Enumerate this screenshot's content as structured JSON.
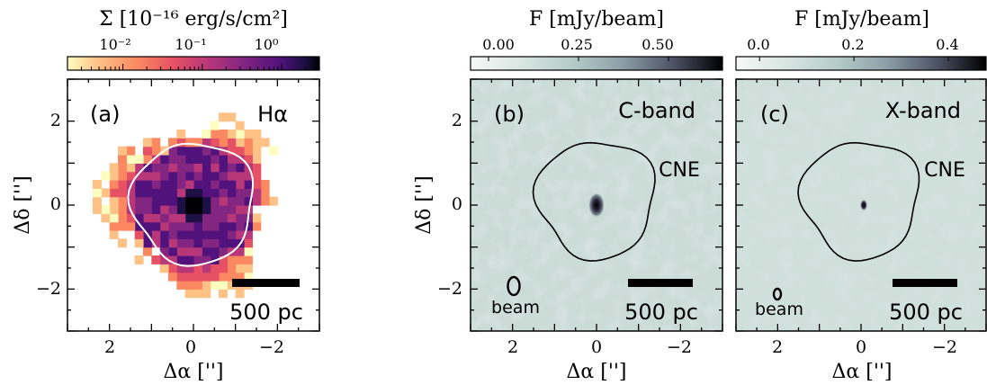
{
  "colors": {
    "halpha_cmap": [
      "#fcfdbf",
      "#fec287",
      "#fb8861",
      "#e65164",
      "#b73779",
      "#822681",
      "#51127c",
      "#1c1044",
      "#000004"
    ],
    "radio_cmap": [
      "#eef3f1",
      "#c7dad4",
      "#9fb7b3",
      "#75888f",
      "#4a4f63",
      "#1e1d2b",
      "#000000"
    ],
    "contour_white": "#ffffff",
    "contour_black": "#000000"
  },
  "chart_data": [
    {
      "type": "heatmap",
      "panel_label": "(a)",
      "band": "Hα",
      "colorbar": {
        "title": "Σ [10⁻¹⁶ erg/s/cm²]",
        "scale": "log",
        "range": [
          0.002,
          3
        ],
        "ticks": [
          0.01,
          0.1,
          1
        ],
        "tick_labels": [
          "10⁻²",
          "10⁻¹",
          "10⁰"
        ],
        "cmap": "magma_r"
      },
      "xlabel": "Δα ['']",
      "ylabel": "Δδ ['']",
      "xlim": [
        3,
        -3
      ],
      "ylim": [
        -3,
        3
      ],
      "xticks": [
        -2,
        0,
        2
      ],
      "yticks": [
        -2,
        0,
        2
      ],
      "xtick_labels": [
        "−2",
        "0",
        "2"
      ],
      "ytick_labels": [
        "−2",
        "0",
        "2"
      ],
      "contour": {
        "color": "white",
        "approx_radius_arcsec": 1.45
      },
      "scalebar": "500 pc"
    },
    {
      "type": "heatmap",
      "panel_label": "(b)",
      "band": "C-band",
      "colorbar": {
        "title": "F [mJy/beam]",
        "scale": "linear",
        "range": [
          -0.05,
          0.65
        ],
        "ticks": [
          0.0,
          0.25,
          0.5
        ],
        "tick_labels": [
          "0.00",
          "0.25",
          "0.50"
        ],
        "cmap": "bone_r"
      },
      "xlabel": "Δα ['']",
      "ylabel": "Δδ ['']",
      "xlim": [
        3,
        -3
      ],
      "ylim": [
        -3,
        3
      ],
      "xticks": [
        -2,
        0,
        2
      ],
      "yticks": [
        -2,
        0,
        2
      ],
      "xtick_labels": [
        "−2",
        "0",
        "2"
      ],
      "ytick_labels": [
        "−2",
        "0",
        "2"
      ],
      "contour": {
        "color": "black",
        "label": "CNE"
      },
      "beam_label": "beam",
      "scalebar": "500 pc",
      "source": {
        "x": 0.0,
        "y": 0.0,
        "peak": 0.6
      }
    },
    {
      "type": "heatmap",
      "panel_label": "(c)",
      "band": "X-band",
      "colorbar": {
        "title": "F [mJy/beam]",
        "scale": "linear",
        "range": [
          -0.05,
          0.48
        ],
        "ticks": [
          0.0,
          0.2,
          0.4
        ],
        "tick_labels": [
          "0.0",
          "0.2",
          "0.4"
        ],
        "cmap": "bone_r"
      },
      "xlabel": "Δα ['']",
      "ylabel": "Δδ ['']",
      "xlim": [
        3,
        -3
      ],
      "ylim": [
        -3,
        3
      ],
      "xticks": [
        -2,
        0,
        2
      ],
      "yticks": [
        -2,
        0,
        2
      ],
      "xtick_labels": [
        "−2",
        "0",
        "2"
      ],
      "ytick_labels": [
        "−2",
        "0",
        "2"
      ],
      "contour": {
        "color": "black",
        "label": "CNE"
      },
      "beam_label": "beam",
      "scalebar": "500 pc",
      "source": {
        "x": 0.0,
        "y": 0.0,
        "peak": 0.45
      }
    }
  ]
}
